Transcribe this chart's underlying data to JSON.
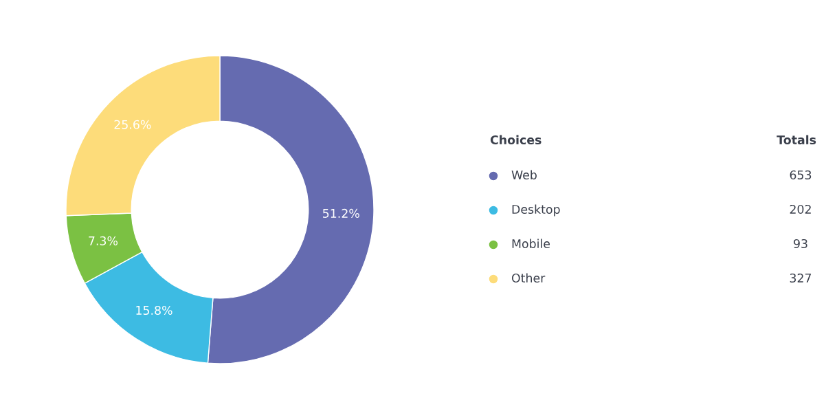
{
  "chart_data": {
    "type": "donut",
    "categories": [
      "Web",
      "Desktop",
      "Mobile",
      "Other"
    ],
    "values": [
      51.2,
      15.8,
      7.3,
      25.6
    ],
    "colors": [
      "#656bb0",
      "#3dbbe3",
      "#7bc143",
      "#fddc7a"
    ],
    "value_labels": [
      "51.2%",
      "15.8%",
      "7.3%",
      "25.6%"
    ],
    "legend": "right",
    "legend_title": "Choices",
    "annotations": [
      "Totals",
      "653",
      "202",
      "93",
      "327"
    ]
  }
}
